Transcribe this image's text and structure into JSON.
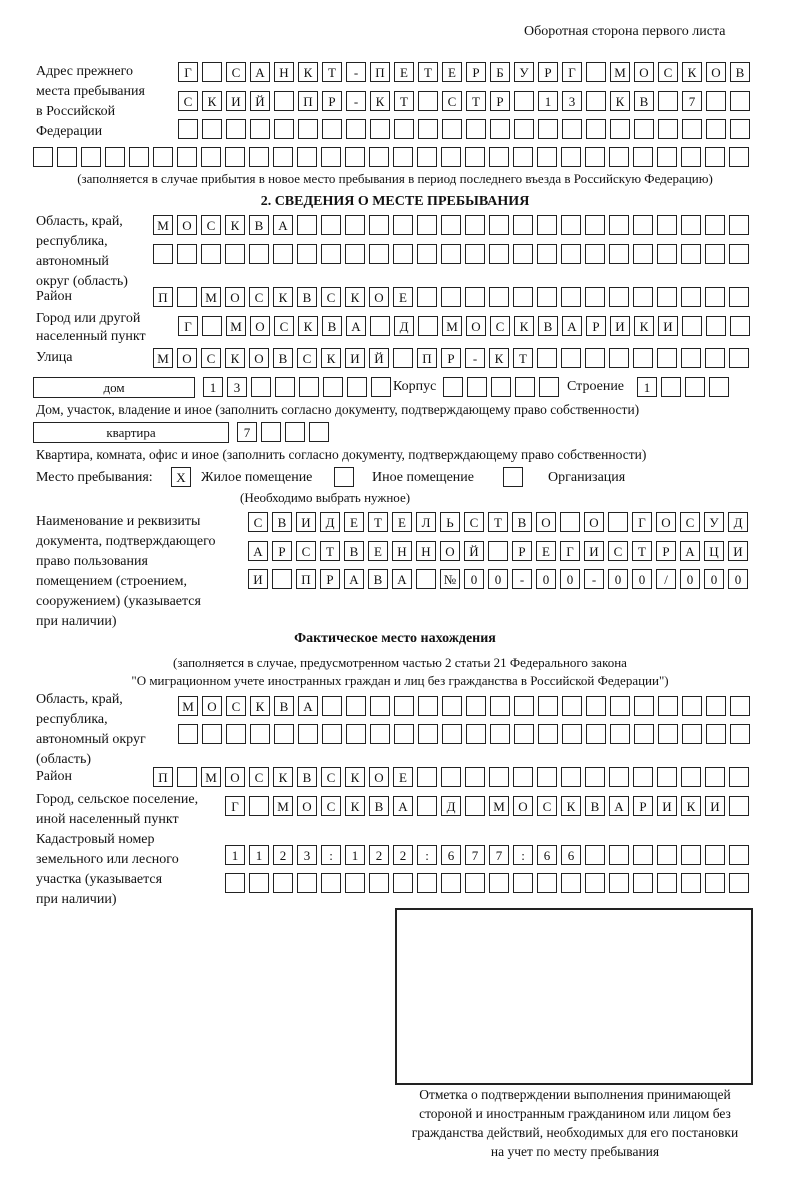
{
  "header": {
    "side_label": "Оборотная сторона первого листа"
  },
  "prev_address": {
    "label": [
      "Адрес прежнего",
      "места пребывания",
      "в Российской",
      "Федерации"
    ],
    "rows": [
      "Г САНКТ-ПЕТЕРБУРГ МОСКОВ",
      "СКИЙ ПР-КТ СТР 13 КВ 7",
      "",
      ""
    ],
    "note": "(заполняется в случае прибытия в новое место пребывания в период последнего въезда в Российскую Федерацию)"
  },
  "section2": {
    "title": "2. СВЕДЕНИЯ О МЕСТЕ ПРЕБЫВАНИЯ",
    "region_label": [
      "Область, край,",
      "республика,",
      "автономный",
      "округ (область)"
    ],
    "region_rows": [
      "МОСКВА",
      ""
    ],
    "district_label": "Район",
    "district": "П МОСКВСКОЕ",
    "city_label": [
      "Город или другой",
      "населенный пункт"
    ],
    "city": "Г МОСКВА Д МОСКВАРИКИ",
    "street_label": "Улица",
    "street": "МОСКОВСКИЙ ПР-КТ",
    "house_type": "дом",
    "house_number": "13",
    "korpus_label": "Корпус",
    "korpus": "",
    "stroenie_label": "Строение",
    "stroenie": "1",
    "house_note": "Дом, участок, владение и иное (заполнить согласно документу, подтверждающему право собственности)",
    "apt_type": "квартира",
    "apt_number": "7",
    "apt_note": "Квартира, комната, офис и иное (заполнить согласно документу, подтверждающему право собственности)",
    "stay_label": "Место пребывания:",
    "stay_options": [
      {
        "label": "Жилое помещение",
        "mark": "X"
      },
      {
        "label": "Иное помещение",
        "mark": ""
      },
      {
        "label": "Организация",
        "mark": ""
      }
    ],
    "stay_hint": "(Необходимо выбрать нужное)",
    "doc_label": [
      "Наименование и реквизиты",
      "документа, подтверждающего",
      "право пользования",
      "помещением (строением,",
      "сооружением) (указывается",
      "при наличии)"
    ],
    "doc_rows": [
      "СВИДЕТЕЛЬСТВО О ГОСУД",
      "АРСТВЕННОЙ РЕГИСТРАЦИ",
      "И ПРАВА №00-00-00/000"
    ]
  },
  "actual": {
    "title": "Фактическое место нахождения",
    "note": [
      "(заполняется в случае, предусмотренном частью 2 статьи 21 Федерального закона",
      "\"О миграционном учете иностранных граждан и лиц без гражданства в Российской Федерации\")"
    ],
    "region_label": [
      "Область, край,",
      "республика,",
      "автономный округ",
      "(область)"
    ],
    "region_rows": [
      "МОСКВА",
      ""
    ],
    "district_label": "Район",
    "district": "П МОСКВСКОЕ",
    "city_label": [
      "Город, сельское поселение,",
      "иной населенный пункт"
    ],
    "city": "Г МОСКВА Д МОСКВАРИКИ",
    "cadastral_label": [
      "Кадастровый номер",
      "земельного или лесного",
      "участка (указывается",
      "при наличии)"
    ],
    "cadastral_rows": [
      "1123:122:677:66",
      ""
    ]
  },
  "stamp": {
    "caption": [
      "Отметка о подтверждении выполнения принимающей",
      "стороной и иностранным гражданином или лицом без",
      "гражданства действий, необходимых для его постановки",
      "на учет по месту пребывания"
    ]
  }
}
